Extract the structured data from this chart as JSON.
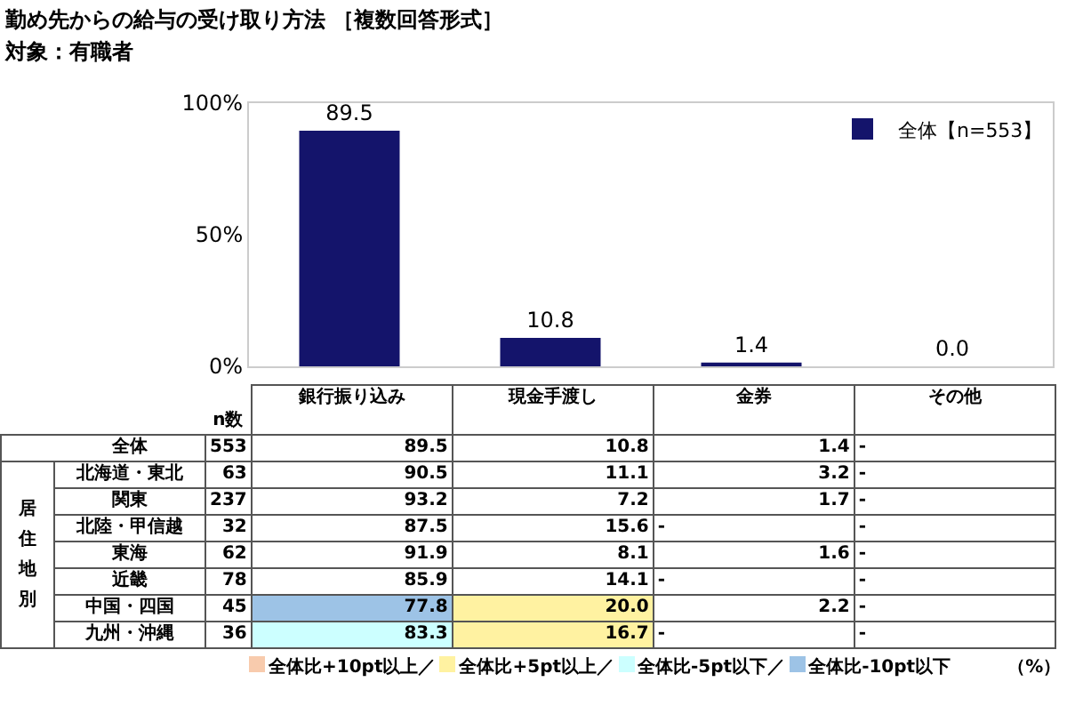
{
  "chart_data": [
    {
      "type": "bar",
      "title": "勤め先からの給与の受け取り方法 ［複数回答形式］",
      "subtitle": "対象：有職者",
      "categories": [
        null,
        null,
        null,
        null
      ],
      "series": [
        {
          "name": "全体【n=553】",
          "color": "#14146b",
          "values": [
            89.5,
            10.8,
            1.4,
            0.0
          ],
          "value_labels": [
            "89.5",
            "10.8",
            "1.4",
            "0.0"
          ]
        }
      ],
      "ylim": [
        0,
        100
      ],
      "yticks": [
        {
          "value": 0,
          "label": "0%"
        },
        {
          "value": 50,
          "label": "50%"
        },
        {
          "value": 100,
          "label": "100%"
        }
      ],
      "grid": false,
      "legend": "top right",
      "tick_labels": "y"
    },
    {
      "type": "heatmap",
      "categories": [
        "銀行振り込み",
        "現金手渡し",
        "金券",
        "その他"
      ],
      "y_categories": [
        "全体",
        "北海道・東北",
        "関東",
        "北陸・甲信越",
        "東海",
        "近畿",
        "中国・四国",
        "九州・沖縄"
      ],
      "y2_categories": [
        "553",
        "63",
        "237",
        "32",
        "62",
        "78",
        "45",
        "36"
      ],
      "ylabel": "居住地別",
      "y2label": "n数",
      "cells": [
        [
          89.5,
          10.8,
          1.4,
          null
        ],
        [
          90.5,
          11.1,
          3.2,
          null
        ],
        [
          93.2,
          7.2,
          1.7,
          null
        ],
        [
          87.5,
          15.6,
          null,
          null
        ],
        [
          91.9,
          8.1,
          1.6,
          null
        ],
        [
          85.9,
          14.1,
          null,
          null
        ],
        [
          77.8,
          20.0,
          2.2,
          null
        ],
        [
          83.3,
          16.7,
          null,
          null
        ]
      ],
      "cell_labels": [
        [
          "89.5",
          "10.8",
          "1.4",
          "-"
        ],
        [
          "90.5",
          "11.1",
          "3.2",
          "-"
        ],
        [
          "93.2",
          "7.2",
          "1.7",
          "-"
        ],
        [
          "87.5",
          "15.6",
          "-",
          "-"
        ],
        [
          "91.9",
          "8.1",
          "1.6",
          "-"
        ],
        [
          "85.9",
          "14.1",
          "-",
          "-"
        ],
        [
          "77.8",
          "20.0",
          "2.2",
          "-"
        ],
        [
          "83.3",
          "16.7",
          "-",
          "-"
        ]
      ],
      "annotations": [
        "全体比+10pt以上／",
        "全体比+5pt以上／",
        "全体比-5pt以下／",
        "全体比-10pt以下",
        "（%）"
      ]
    }
  ]
}
